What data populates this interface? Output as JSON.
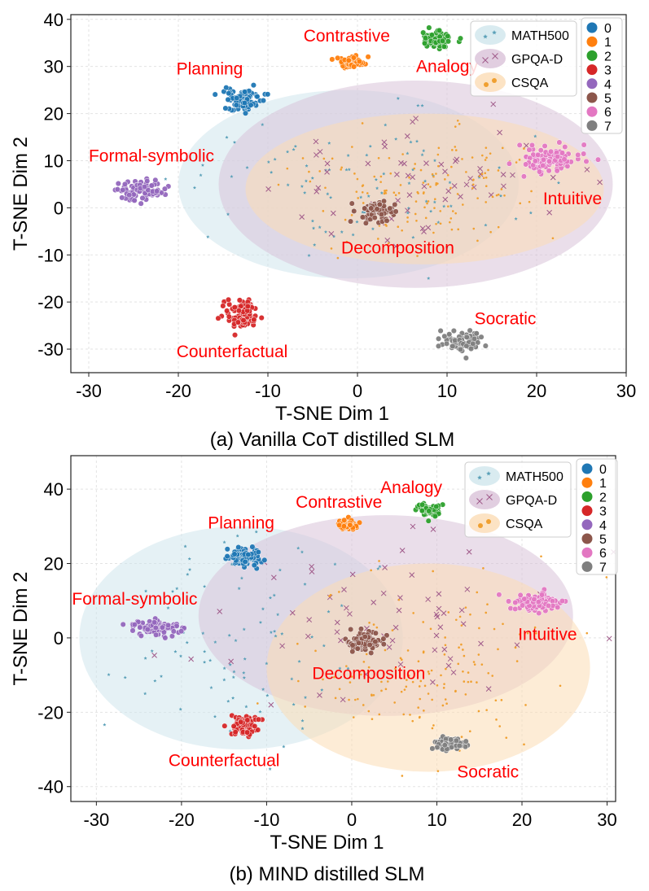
{
  "chart_data": [
    {
      "type": "scatter",
      "title": "",
      "caption": "(a) Vanilla CoT distilled SLM",
      "xlabel": "T-SNE Dim 1",
      "ylabel": "T-SNE Dim 2",
      "xlim": [
        -32,
        30
      ],
      "ylim": [
        -35,
        41
      ],
      "xticks": [
        -30,
        -20,
        -10,
        0,
        10,
        20,
        30
      ],
      "yticks": [
        -30,
        -20,
        -10,
        0,
        10,
        20,
        30,
        40
      ],
      "grid": true,
      "clusters": [
        {
          "id": "0",
          "name": "Planning",
          "color": "#1f77b4",
          "center": [
            -13,
            23
          ],
          "spread": [
            1.6,
            1.6
          ],
          "count": 90,
          "label_at": [
            -16.5,
            29.5
          ]
        },
        {
          "id": "1",
          "name": "Contrastive",
          "color": "#ff7f0e",
          "center": [
            -0.7,
            31
          ],
          "spread": [
            1.0,
            1.0
          ],
          "count": 50,
          "label_at": [
            -1.2,
            36.5
          ]
        },
        {
          "id": "2",
          "name": "Analogy",
          "color": "#2ca02c",
          "center": [
            9,
            35.5
          ],
          "spread": [
            1.2,
            1.2
          ],
          "count": 60,
          "label_at": [
            10,
            30
          ]
        },
        {
          "id": "3",
          "name": "Counterfactual",
          "color": "#d62728",
          "center": [
            -13,
            -22.5
          ],
          "spread": [
            1.3,
            2.1
          ],
          "count": 80,
          "label_at": [
            -14,
            -30.5
          ]
        },
        {
          "id": "4",
          "name": "Formal-symbolic",
          "color": "#9467bd",
          "center": [
            -24,
            3.5
          ],
          "spread": [
            1.8,
            1.5
          ],
          "count": 90,
          "label_at": [
            -23,
            11
          ]
        },
        {
          "id": "5",
          "name": "Decomposition",
          "color": "#8c564b",
          "center": [
            2,
            -1
          ],
          "spread": [
            1.6,
            1.5
          ],
          "count": 80,
          "label_at": [
            4.5,
            -8.5
          ]
        },
        {
          "id": "6",
          "name": "Intuitive",
          "color": "#e377c2",
          "center": [
            21.5,
            10
          ],
          "spread": [
            2.2,
            1.8
          ],
          "count": 100,
          "label_at": [
            24,
            2
          ]
        },
        {
          "id": "7",
          "name": "Socratic",
          "color": "#7f7f7f",
          "center": [
            11.5,
            -28.5
          ],
          "spread": [
            1.6,
            1.4
          ],
          "count": 80,
          "label_at": [
            16.5,
            -23.5
          ]
        }
      ],
      "datasets": [
        {
          "name": "MATH500",
          "color": "#5aa0b8",
          "fill": "#d0e6ec",
          "marker": "star",
          "ellipse": {
            "cx": -1,
            "cy": 5,
            "rx": 19,
            "ry": 20
          },
          "points": 90,
          "spread": [
            9,
            8
          ]
        },
        {
          "name": "GPQA-D",
          "color": "#a05a8a",
          "fill": "#d9c2d8",
          "marker": "x",
          "ellipse": {
            "cx": 6.5,
            "cy": 5,
            "rx": 22,
            "ry": 22
          },
          "points": 60,
          "spread": [
            9,
            8
          ]
        },
        {
          "name": "CSQA",
          "color": "#f0a030",
          "fill": "#fbdcb5",
          "marker": "dot",
          "ellipse": {
            "cx": 7.5,
            "cy": 4,
            "rx": 20,
            "ry": 16
          },
          "points": 150,
          "spread": [
            6.5,
            6
          ]
        }
      ]
    },
    {
      "type": "scatter",
      "title": "",
      "caption": "(b) MIND distilled SLM",
      "xlabel": "T-SNE Dim 1",
      "ylabel": "T-SNE Dim 2",
      "xlim": [
        -33,
        31
      ],
      "ylim": [
        -44,
        49
      ],
      "xticks": [
        -30,
        -20,
        -10,
        0,
        10,
        20,
        30
      ],
      "yticks": [
        -40,
        -20,
        0,
        20,
        40
      ],
      "grid": true,
      "clusters": [
        {
          "id": "0",
          "name": "Planning",
          "color": "#1f77b4",
          "center": [
            -12.5,
            22
          ],
          "spread": [
            1.4,
            1.6
          ],
          "count": 90,
          "label_at": [
            -13,
            31
          ]
        },
        {
          "id": "1",
          "name": "Contrastive",
          "color": "#ff7f0e",
          "center": [
            -0.5,
            30.5
          ],
          "spread": [
            0.9,
            1.0
          ],
          "count": 45,
          "label_at": [
            -1.5,
            36.5
          ]
        },
        {
          "id": "2",
          "name": "Analogy",
          "color": "#2ca02c",
          "center": [
            9,
            34.5
          ],
          "spread": [
            1.1,
            1.2
          ],
          "count": 55,
          "label_at": [
            7,
            40.5
          ]
        },
        {
          "id": "3",
          "name": "Counterfactual",
          "color": "#d62728",
          "center": [
            -12.5,
            -23.5
          ],
          "spread": [
            1.2,
            2.2
          ],
          "count": 80,
          "label_at": [
            -15,
            -33
          ]
        },
        {
          "id": "4",
          "name": "Formal-symbolic",
          "color": "#9467bd",
          "center": [
            -23,
            3
          ],
          "spread": [
            1.8,
            1.4
          ],
          "count": 90,
          "label_at": [
            -25.5,
            10.5
          ]
        },
        {
          "id": "5",
          "name": "Decomposition",
          "color": "#8c564b",
          "center": [
            1.5,
            -1
          ],
          "spread": [
            1.4,
            1.8
          ],
          "count": 80,
          "label_at": [
            2,
            -9.5
          ]
        },
        {
          "id": "6",
          "name": "Intuitive",
          "color": "#e377c2",
          "center": [
            21.5,
            9.5
          ],
          "spread": [
            1.9,
            1.7
          ],
          "count": 100,
          "label_at": [
            23,
            1
          ]
        },
        {
          "id": "7",
          "name": "Socratic",
          "color": "#7f7f7f",
          "center": [
            11.5,
            -28.5
          ],
          "spread": [
            1.4,
            1.2
          ],
          "count": 70,
          "label_at": [
            16,
            -36
          ]
        }
      ],
      "datasets": [
        {
          "name": "MATH500",
          "color": "#5aa0b8",
          "fill": "#d0e6ec",
          "marker": "star",
          "ellipse": {
            "cx": -13,
            "cy": 0,
            "rx": 19,
            "ry": 30
          },
          "points": 90,
          "spread": [
            8,
            15
          ]
        },
        {
          "name": "GPQA-D",
          "color": "#a05a8a",
          "fill": "#d9c2d8",
          "marker": "x",
          "ellipse": {
            "cx": 4,
            "cy": 6,
            "rx": 22,
            "ry": 27
          },
          "points": 65,
          "spread": [
            10,
            12
          ]
        },
        {
          "name": "CSQA",
          "color": "#f0a030",
          "fill": "#fbdcb5",
          "marker": "dot",
          "ellipse": {
            "cx": 9,
            "cy": -8,
            "rx": 19,
            "ry": 28
          },
          "points": 150,
          "spread": [
            7.5,
            12
          ]
        }
      ]
    }
  ],
  "legend": {
    "clusters": [
      "0",
      "1",
      "2",
      "3",
      "4",
      "5",
      "6",
      "7"
    ],
    "datasets": [
      "MATH500",
      "GPQA-D",
      "CSQA"
    ]
  }
}
